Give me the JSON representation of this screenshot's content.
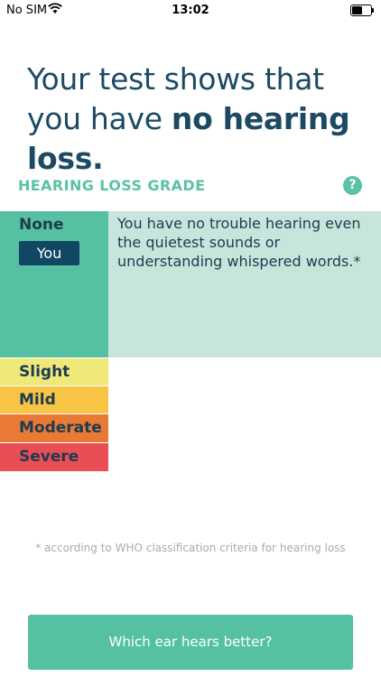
{
  "status_bar": {
    "carrier": "No SIM",
    "time": "13:02",
    "icons": [
      "wifi-icon",
      "battery-icon"
    ]
  },
  "headline": {
    "prefix": "Your test shows that you have ",
    "emphasis": "no hearing loss."
  },
  "grade_section": {
    "title": "HEARING LOSS GRADE",
    "help_icon_glyph": "?"
  },
  "grades": {
    "none": {
      "label": "None",
      "badge": "You",
      "description": "You have no trouble hearing even the quietest sounds or understanding whispered words.*",
      "color": "#55c1a2"
    },
    "slight": {
      "label": "Slight",
      "color": "#f0e97a"
    },
    "mild": {
      "label": "Mild",
      "color": "#f7c446"
    },
    "moderate": {
      "label": "Moderate",
      "color": "#e87a35"
    },
    "severe": {
      "label": "Severe",
      "color": "#e94e55"
    }
  },
  "footnote": "* according to WHO classification criteria for hearing loss",
  "cta": {
    "label": "Which ear hears better?"
  },
  "colors": {
    "accent": "#55c1a2",
    "headline": "#1d4a63",
    "badge": "#104863"
  }
}
